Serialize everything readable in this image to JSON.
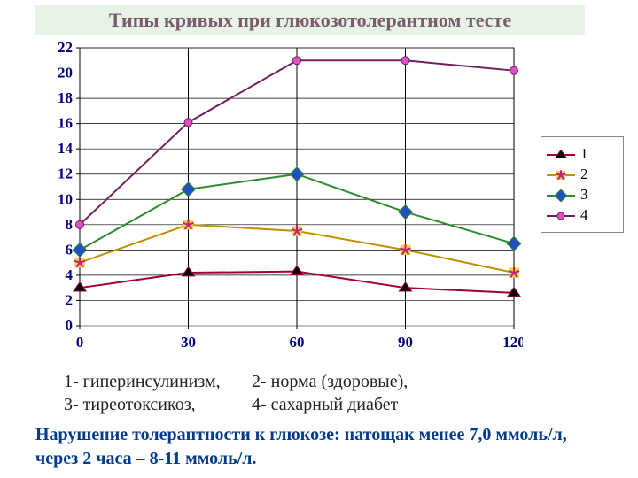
{
  "title": "Типы кривых при глюкозотолерантном тесте",
  "chart": {
    "type": "line",
    "x": [
      0,
      30,
      60,
      90,
      120
    ],
    "ylim": [
      0,
      22
    ],
    "ytick_step": 2,
    "background_color": "#ffffff",
    "plot_border_color": "#808080",
    "grid_color": "#000000",
    "grid_on": true,
    "axis_label_fontsize": 17,
    "axis_label_color": "#000080",
    "axis_label_weight": "bold",
    "series": [
      {
        "id": "1",
        "label": "1",
        "color": "#a00030",
        "marker": "triangle",
        "marker_fill": "#000000",
        "marker_size": 10,
        "line_width": 2,
        "values": [
          3.0,
          4.2,
          4.3,
          3.0,
          2.6
        ]
      },
      {
        "id": "2",
        "label": "2",
        "color": "#c09000",
        "marker": "asterisk",
        "marker_fill": "#c02080",
        "marker_size": 10,
        "line_width": 2,
        "values": [
          5.0,
          8.0,
          7.5,
          6.0,
          4.2
        ]
      },
      {
        "id": "3",
        "label": "3",
        "color": "#2e8b2e",
        "marker": "diamond",
        "marker_fill": "#2050c0",
        "marker_size": 11,
        "line_width": 2,
        "values": [
          6.0,
          10.8,
          12.0,
          9.0,
          6.5
        ]
      },
      {
        "id": "4",
        "label": "4",
        "color": "#702060",
        "marker": "circle",
        "marker_fill": "#e050c0",
        "marker_size": 9,
        "line_width": 2,
        "values": [
          8.0,
          16.1,
          21.0,
          21.0,
          20.2
        ]
      }
    ]
  },
  "captions": {
    "line1_a": "1- гиперинсулинизм,",
    "line1_b": "2- норма (здоровые),",
    "line2_a": "3- тиреотоксикоз,",
    "line2_b": "4- сахарный диабет"
  },
  "footnote": "Нарушение толерантности к глюкозе: натощак менее 7,0 ммоль/л, через 2 часа – 8-11 ммоль/л."
}
